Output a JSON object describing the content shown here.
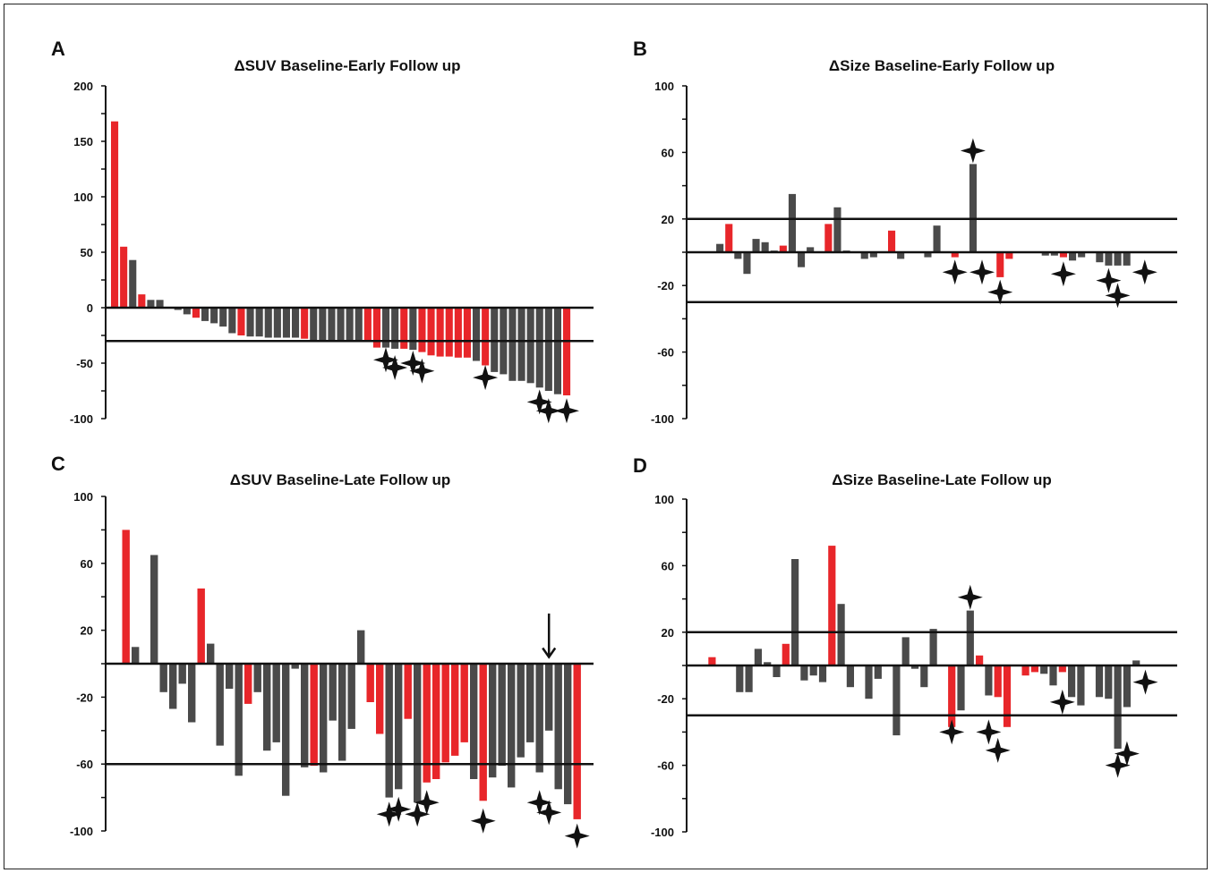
{
  "colors": {
    "red": "#e8262a",
    "gray": "#4a4a4a",
    "axis": "#111111",
    "star": "#111111"
  },
  "chart_data": [
    {
      "type": "bar",
      "panel_label": "A",
      "title": "ΔSUV Baseline-Early Follow up",
      "ylim": [
        -100,
        200
      ],
      "yticks": [
        200,
        150,
        100,
        50,
        0,
        -50,
        -100
      ],
      "tick_labels": [
        "200",
        "150",
        "100",
        "50",
        "0",
        "-50",
        "-100"
      ],
      "minor_step": 25,
      "hlines": [
        0,
        -30
      ],
      "values": [
        168,
        55,
        43,
        12,
        7,
        7,
        0,
        -2,
        -6,
        -9,
        -12,
        -14,
        -17,
        -23,
        -25,
        -26,
        -26,
        -27,
        -27,
        -27,
        -27,
        -28,
        -29,
        -30,
        -30,
        -30,
        -31,
        -31,
        -31,
        -36,
        -36,
        -37,
        -37,
        -38,
        -40,
        -43,
        -44,
        -44,
        -45,
        -45,
        -48,
        -52,
        -58,
        -60,
        -66,
        -66,
        -68,
        -72,
        -75,
        -78,
        -79
      ],
      "colors": [
        "red",
        "red",
        "gray",
        "red",
        "gray",
        "gray",
        "gray",
        "gray",
        "gray",
        "red",
        "gray",
        "gray",
        "gray",
        "gray",
        "red",
        "gray",
        "gray",
        "gray",
        "gray",
        "gray",
        "gray",
        "red",
        "gray",
        "gray",
        "gray",
        "gray",
        "gray",
        "gray",
        "red",
        "red",
        "gray",
        "gray",
        "red",
        "gray",
        "red",
        "red",
        "red",
        "red",
        "red",
        "red",
        "gray",
        "red",
        "gray",
        "gray",
        "gray",
        "gray",
        "gray",
        "gray",
        "gray",
        "gray",
        "red"
      ],
      "stars": [
        {
          "bar": 30,
          "y": -47
        },
        {
          "bar": 31,
          "y": -54
        },
        {
          "bar": 33,
          "y": -50
        },
        {
          "bar": 34,
          "y": -57
        },
        {
          "bar": 41,
          "y": -63
        },
        {
          "bar": 47,
          "y": -85
        },
        {
          "bar": 48,
          "y": -93
        },
        {
          "bar": 50,
          "y": -93
        }
      ],
      "arrows": []
    },
    {
      "type": "bar",
      "panel_label": "B",
      "title": "ΔSize Baseline-Early Follow up",
      "ylim": [
        -100,
        100
      ],
      "yticks": [
        100,
        60,
        20,
        -20,
        -60,
        -100
      ],
      "tick_labels": [
        "100",
        "60",
        "20",
        "-20",
        "-60",
        "-100"
      ],
      "minor_step": 20,
      "hlines": [
        20,
        0,
        -30
      ],
      "values": [
        0,
        5,
        17,
        -4,
        -13,
        8,
        6,
        1,
        4,
        35,
        -9,
        3,
        0,
        17,
        27,
        1,
        0,
        -4,
        -3,
        0,
        13,
        -4,
        0,
        0,
        -3,
        16,
        0,
        -3,
        0,
        53,
        0,
        0,
        -15,
        -4,
        0,
        0,
        0,
        -2,
        -2,
        -3,
        -5,
        -3,
        0,
        -6,
        -8,
        -8,
        -8,
        0,
        0
      ],
      "colors": [
        "gray",
        "gray",
        "red",
        "gray",
        "gray",
        "gray",
        "gray",
        "gray",
        "red",
        "gray",
        "gray",
        "gray",
        "gray",
        "red",
        "gray",
        "gray",
        "gray",
        "gray",
        "gray",
        "gray",
        "red",
        "gray",
        "gray",
        "gray",
        "gray",
        "gray",
        "gray",
        "red",
        "gray",
        "gray",
        "gray",
        "gray",
        "red",
        "red",
        "gray",
        "gray",
        "gray",
        "gray",
        "gray",
        "red",
        "gray",
        "gray",
        "gray",
        "gray",
        "gray",
        "gray",
        "gray",
        "gray",
        "gray"
      ],
      "stars": [
        {
          "bar": 27,
          "y": -12
        },
        {
          "bar": 29,
          "y": 61
        },
        {
          "bar": 30,
          "y": -12
        },
        {
          "bar": 32,
          "y": -24
        },
        {
          "bar": 39,
          "y": -13
        },
        {
          "bar": 44,
          "y": -17
        },
        {
          "bar": 45,
          "y": -26
        },
        {
          "bar": 48,
          "y": -12
        }
      ],
      "arrows": []
    },
    {
      "type": "bar",
      "panel_label": "C",
      "title": "ΔSUV Baseline-Late Follow up",
      "ylim": [
        -100,
        100
      ],
      "yticks": [
        100,
        60,
        20,
        -20,
        -60,
        -100
      ],
      "tick_labels": [
        "100",
        "60",
        "20",
        "-20",
        "-60",
        "-100"
      ],
      "minor_step": 20,
      "hlines": [
        0,
        -60
      ],
      "values": [
        0,
        80,
        10,
        0,
        65,
        -17,
        -27,
        -12,
        -35,
        45,
        12,
        -49,
        -15,
        -67,
        -24,
        -17,
        -52,
        -47,
        -79,
        -3,
        -62,
        -61,
        -65,
        -34,
        -58,
        -39,
        20,
        -23,
        -42,
        -80,
        -75,
        -33,
        -83,
        -71,
        -69,
        -59,
        -55,
        -47,
        -69,
        -82,
        -68,
        -61,
        -74,
        -56,
        -47,
        -65,
        -40,
        -75,
        -84,
        -93
      ],
      "colors": [
        "gray",
        "red",
        "gray",
        "gray",
        "gray",
        "gray",
        "gray",
        "gray",
        "gray",
        "red",
        "gray",
        "gray",
        "gray",
        "gray",
        "red",
        "gray",
        "gray",
        "gray",
        "gray",
        "gray",
        "gray",
        "red",
        "gray",
        "gray",
        "gray",
        "gray",
        "gray",
        "red",
        "red",
        "gray",
        "gray",
        "red",
        "gray",
        "red",
        "red",
        "red",
        "red",
        "red",
        "gray",
        "red",
        "gray",
        "gray",
        "gray",
        "gray",
        "gray",
        "gray",
        "gray",
        "gray",
        "gray",
        "red"
      ],
      "stars": [
        {
          "bar": 29,
          "y": -90
        },
        {
          "bar": 30,
          "y": -87
        },
        {
          "bar": 32,
          "y": -90
        },
        {
          "bar": 33,
          "y": -83
        },
        {
          "bar": 39,
          "y": -94
        },
        {
          "bar": 45,
          "y": -83
        },
        {
          "bar": 46,
          "y": -89
        },
        {
          "bar": 49,
          "y": -103
        }
      ],
      "arrows": [
        {
          "bar": 46,
          "from": 30,
          "to": 4
        }
      ]
    },
    {
      "type": "bar",
      "panel_label": "D",
      "title": "ΔSize Baseline-Late Follow up",
      "ylim": [
        -100,
        100
      ],
      "yticks": [
        100,
        60,
        20,
        -20,
        -60,
        -100
      ],
      "tick_labels": [
        "100",
        "60",
        "20",
        "-20",
        "-60",
        "-100"
      ],
      "minor_step": 20,
      "hlines": [
        20,
        0,
        -30
      ],
      "values": [
        0,
        5,
        0,
        0,
        -16,
        -16,
        10,
        2,
        -7,
        13,
        64,
        -9,
        -6,
        -10,
        72,
        37,
        -13,
        0,
        -20,
        -8,
        0,
        -42,
        17,
        -2,
        -13,
        22,
        0,
        -37,
        -27,
        33,
        6,
        -18,
        -19,
        -37,
        0,
        -6,
        -4,
        -5,
        -12,
        -4,
        -19,
        -24,
        0,
        -19,
        -20,
        -50,
        -25,
        3,
        0
      ],
      "colors": [
        "gray",
        "red",
        "gray",
        "gray",
        "gray",
        "gray",
        "gray",
        "gray",
        "gray",
        "red",
        "gray",
        "gray",
        "gray",
        "gray",
        "red",
        "gray",
        "gray",
        "gray",
        "gray",
        "gray",
        "gray",
        "gray",
        "gray",
        "gray",
        "gray",
        "gray",
        "gray",
        "red",
        "gray",
        "gray",
        "red",
        "gray",
        "red",
        "red",
        "gray",
        "red",
        "red",
        "gray",
        "gray",
        "red",
        "gray",
        "gray",
        "gray",
        "gray",
        "gray",
        "gray",
        "gray",
        "gray",
        "gray"
      ],
      "stars": [
        {
          "bar": 27,
          "y": -40
        },
        {
          "bar": 29,
          "y": 41
        },
        {
          "bar": 31,
          "y": -40
        },
        {
          "bar": 32,
          "y": -51
        },
        {
          "bar": 39,
          "y": -22
        },
        {
          "bar": 45,
          "y": -60
        },
        {
          "bar": 46,
          "y": -53
        },
        {
          "bar": 48,
          "y": -10
        }
      ],
      "arrows": []
    }
  ]
}
